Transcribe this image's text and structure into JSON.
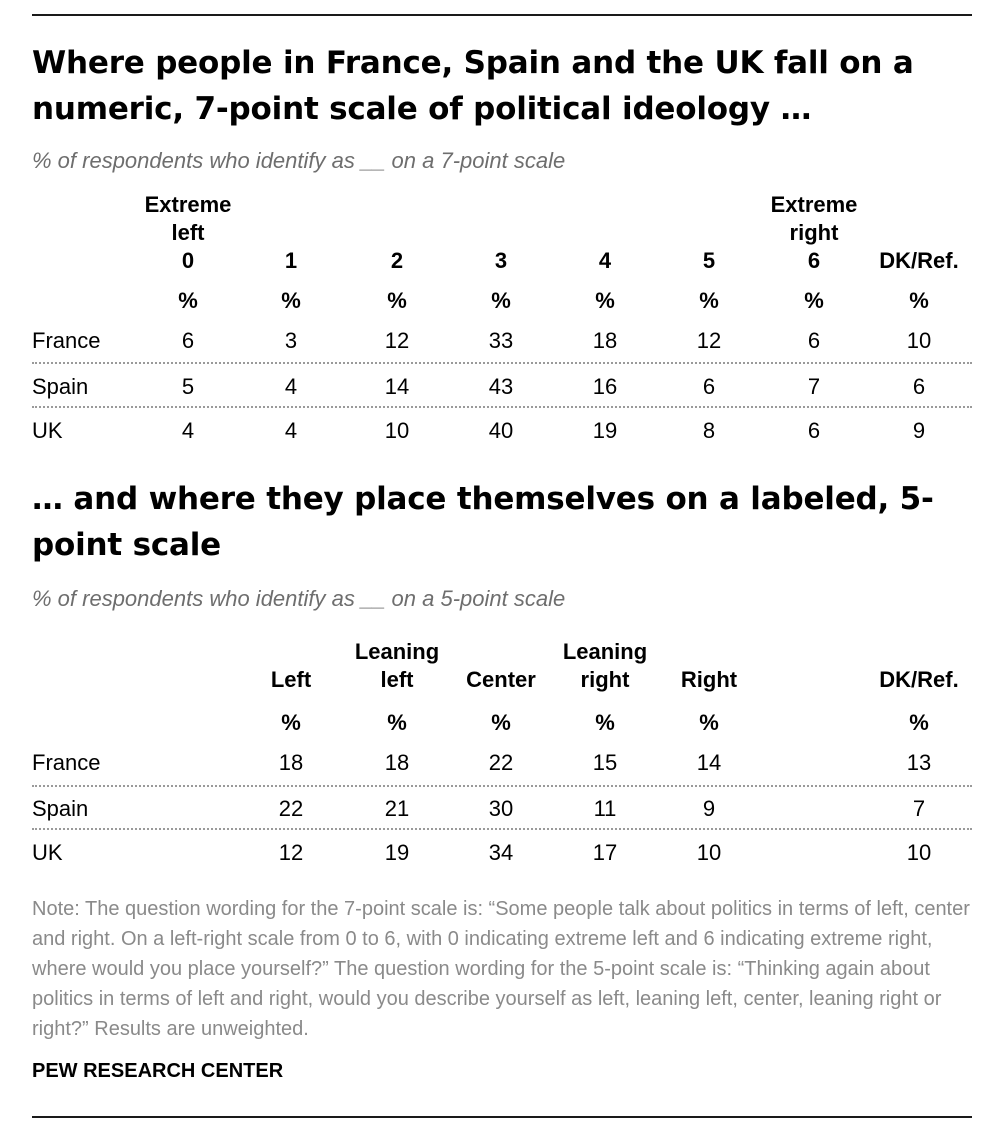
{
  "title1": "Where people in France, Spain and the UK fall on a numeric, 7-point scale of political ideology …",
  "subtitle1": "% of respondents who identify as __ on a 7-point scale",
  "title2": "… and where they place themselves on a labeled, 5-point scale",
  "subtitle2": "% of respondents who identify as __ on a 5-point scale",
  "chart_data": [
    {
      "type": "table",
      "columns": [
        "Extreme left 0",
        "1",
        "2",
        "3",
        "4",
        "5",
        "Extreme right 6",
        "DK/Ref."
      ],
      "header_lines": [
        [
          "Extreme",
          "left",
          "0"
        ],
        [
          "1"
        ],
        [
          "2"
        ],
        [
          "3"
        ],
        [
          "4"
        ],
        [
          "5"
        ],
        [
          "Extreme",
          "right",
          "6"
        ],
        [
          "DK/Ref."
        ]
      ],
      "unit_row": [
        "%",
        "%",
        "%",
        "%",
        "%",
        "%",
        "%",
        "%"
      ],
      "rows": [
        {
          "label": "France",
          "values": [
            6,
            3,
            12,
            33,
            18,
            12,
            6,
            10
          ]
        },
        {
          "label": "Spain",
          "values": [
            5,
            4,
            14,
            43,
            16,
            6,
            7,
            6
          ]
        },
        {
          "label": "UK",
          "values": [
            4,
            4,
            10,
            40,
            19,
            8,
            6,
            9
          ]
        }
      ]
    },
    {
      "type": "table",
      "columns": [
        "Left",
        "Leaning left",
        "Center",
        "Leaning right",
        "Right",
        "DK/Ref."
      ],
      "header_lines": [
        [
          "Left"
        ],
        [
          "Leaning",
          "left"
        ],
        [
          "Center"
        ],
        [
          "Leaning",
          "right"
        ],
        [
          "Right"
        ],
        [
          "DK/Ref."
        ]
      ],
      "unit_row": [
        "%",
        "%",
        "%",
        "%",
        "%",
        "%"
      ],
      "rows": [
        {
          "label": "France",
          "values": [
            18,
            18,
            22,
            15,
            14,
            13
          ]
        },
        {
          "label": "Spain",
          "values": [
            22,
            21,
            30,
            11,
            9,
            7
          ]
        },
        {
          "label": "UK",
          "values": [
            12,
            19,
            34,
            17,
            10,
            10
          ]
        }
      ]
    }
  ],
  "note": "Note: The question wording for the 7-point scale is: “Some people talk about politics in terms of left, center and right. On a left-right scale from 0 to 6, with 0 indicating extreme left and 6 indicating extreme right, where would you place yourself?”  The question wording for the 5-point scale is: “Thinking again about politics in terms of left and right, would you describe yourself as left, leaning left, center, leaning right or right?” Results are unweighted.",
  "source": "PEW RESEARCH CENTER"
}
